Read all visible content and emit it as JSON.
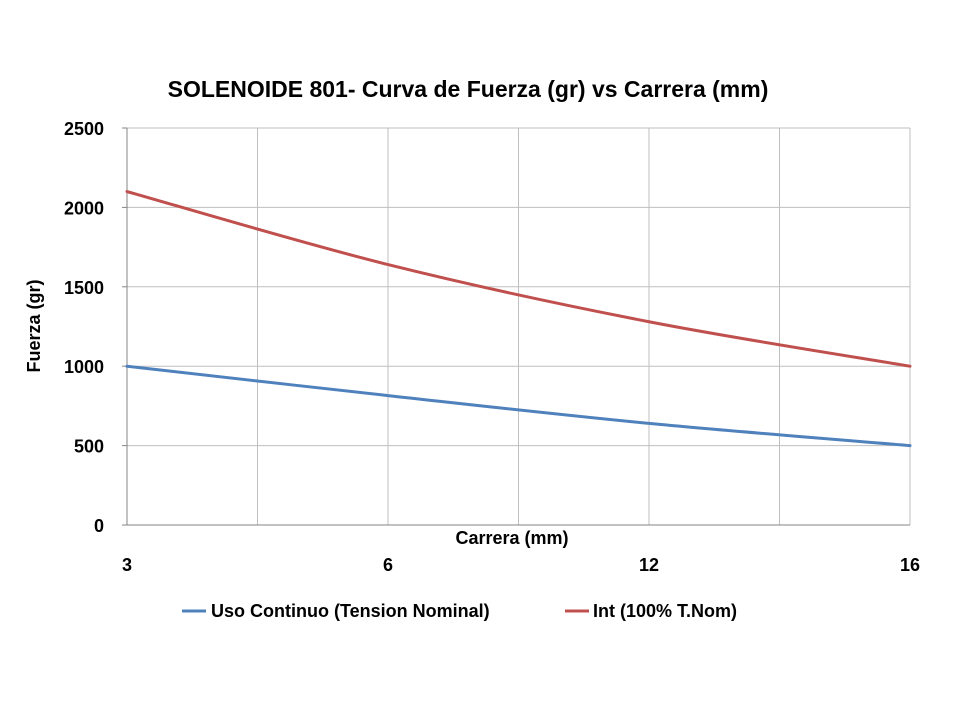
{
  "chart_data": {
    "type": "line",
    "title": "SOLENOIDE 801- Curva de Fuerza (gr) vs Carrera (mm)",
    "xlabel": "Carrera (mm)",
    "ylabel": "Fuerza (gr)",
    "categories": [
      "3",
      "6",
      "12",
      "16"
    ],
    "x_tick_labels": [
      "3",
      "6",
      "12",
      "16"
    ],
    "ylim": [
      0,
      2500
    ],
    "y_ticks": [
      0,
      500,
      1000,
      1500,
      2000,
      2500
    ],
    "grid": true,
    "legend_position": "bottom",
    "series": [
      {
        "name": "Uso Continuo (Tension Nominal)",
        "color": "#4f81bd",
        "values": [
          1000,
          815,
          640,
          500
        ]
      },
      {
        "name": "Int (100% T.Nom)",
        "color": "#c0504d",
        "values": [
          2100,
          1640,
          1280,
          1000
        ]
      }
    ]
  },
  "colors": {
    "grid": "#bfbfbf",
    "axis": "#868686"
  }
}
